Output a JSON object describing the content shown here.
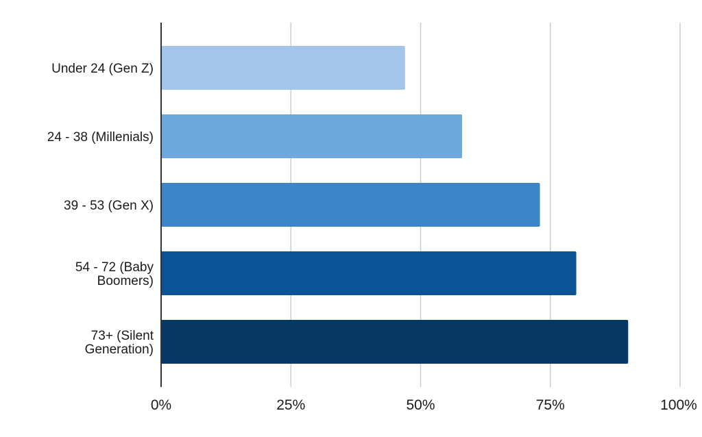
{
  "chart_data": {
    "type": "bar",
    "orientation": "horizontal",
    "title": "",
    "xlabel": "",
    "ylabel": "",
    "categories": [
      [
        "Under 24 (Gen Z)"
      ],
      [
        "24 - 38 (Millenials)"
      ],
      [
        "39 - 53 (Gen X)"
      ],
      [
        "54 - 72 (Baby",
        "Boomers)"
      ],
      [
        "73+ (Silent",
        "Generation)"
      ]
    ],
    "values": [
      0.47,
      0.58,
      0.73,
      0.8,
      0.9
    ],
    "colors": [
      "#a3c5e9",
      "#6fa8dc",
      "#3d85c6",
      "#0b5394",
      "#073763"
    ],
    "xlim": [
      0,
      1
    ],
    "xticks": [
      0,
      0.25,
      0.5,
      0.75,
      1
    ],
    "xtick_labels": [
      "0%",
      "25%",
      "50%",
      "75%",
      "100%"
    ],
    "grid": true,
    "grid_color": "#cccccc",
    "axis_color": "#333333",
    "legend": "none"
  }
}
